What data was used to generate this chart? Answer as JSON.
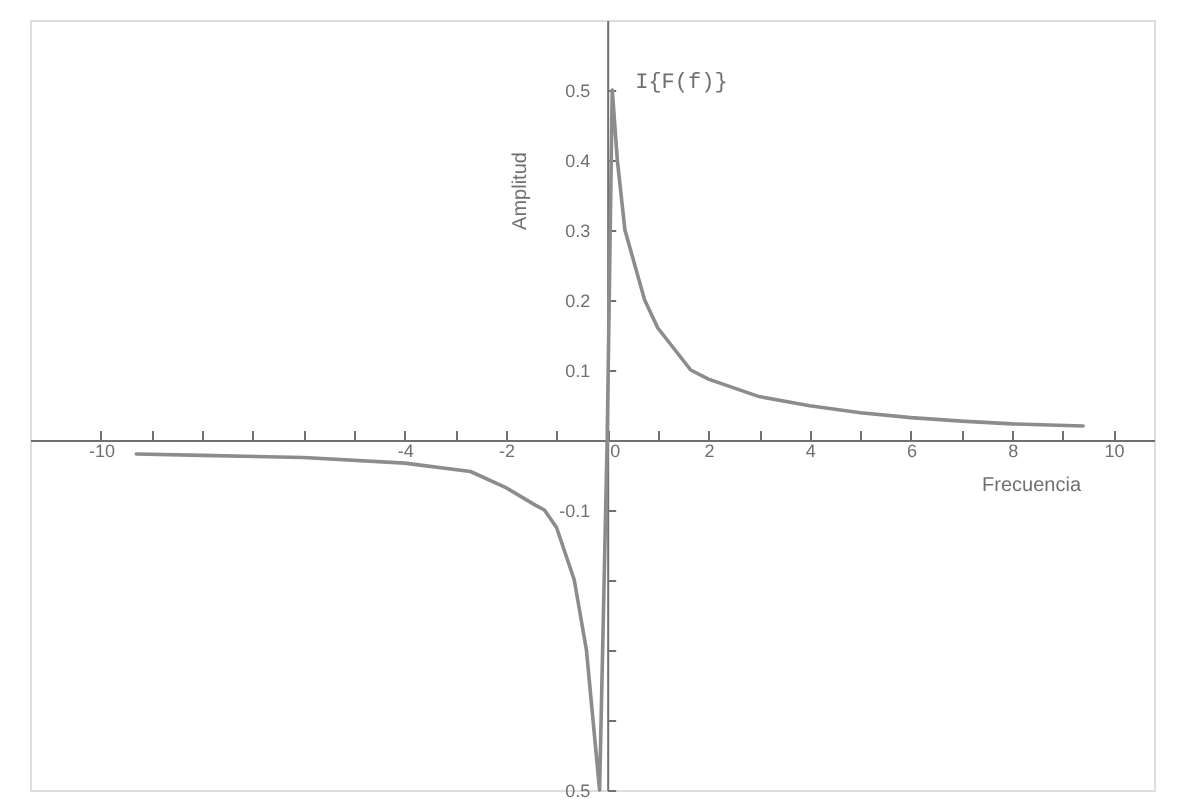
{
  "chart_data": {
    "type": "line",
    "title": "I{F(f)}",
    "xlabel": "Frecuencia",
    "ylabel": "Amplitud",
    "x": [
      -9.3,
      -8,
      -6,
      -4,
      -2.7,
      -2,
      -1.42,
      -1.24,
      -1,
      -0.65,
      -0.41,
      -0.28,
      -0.15,
      0,
      0.1,
      0.2,
      0.35,
      0.74,
      1,
      1.65,
      2,
      3,
      4,
      5,
      6,
      7,
      8,
      9.4
    ],
    "values": [
      -0.02,
      -0.022,
      -0.025,
      -0.033,
      -0.045,
      -0.068,
      -0.093,
      -0.1,
      -0.125,
      -0.2,
      -0.3,
      -0.4,
      -0.5,
      0,
      0.5,
      0.4,
      0.3,
      0.2,
      0.16,
      0.1,
      0.087,
      0.062,
      0.049,
      0.039,
      0.032,
      0.027,
      0.023,
      0.02
    ],
    "color": "#8c8c8c",
    "line_style": "solid",
    "xlim": [
      -11.4,
      10.8
    ],
    "ylim": [
      -0.5,
      0.6
    ],
    "xticks": [
      -10,
      {
        "value": -9,
        "label": null
      },
      {
        "value": -8,
        "label": null
      },
      {
        "value": -7,
        "label": null
      },
      {
        "value": -6,
        "label": null
      },
      {
        "value": -5,
        "label": null
      },
      -4,
      {
        "value": -3,
        "label": null
      },
      -2,
      {
        "value": -1,
        "label": null
      },
      0,
      {
        "value": 1,
        "label": null
      },
      2,
      {
        "value": 3,
        "label": null
      },
      4,
      {
        "value": 5,
        "label": null
      },
      6,
      {
        "value": 7,
        "label": null
      },
      8,
      {
        "value": 9,
        "label": null
      },
      10
    ],
    "yticks": [
      0.5,
      0.4,
      0.3,
      0.2,
      0.1,
      -0.1,
      {
        "value": -0.2,
        "label": null
      },
      {
        "value": -0.3,
        "label": null
      },
      {
        "value": -0.4,
        "label": null
      },
      {
        "value": -0.5,
        "label": "0.5"
      }
    ]
  }
}
